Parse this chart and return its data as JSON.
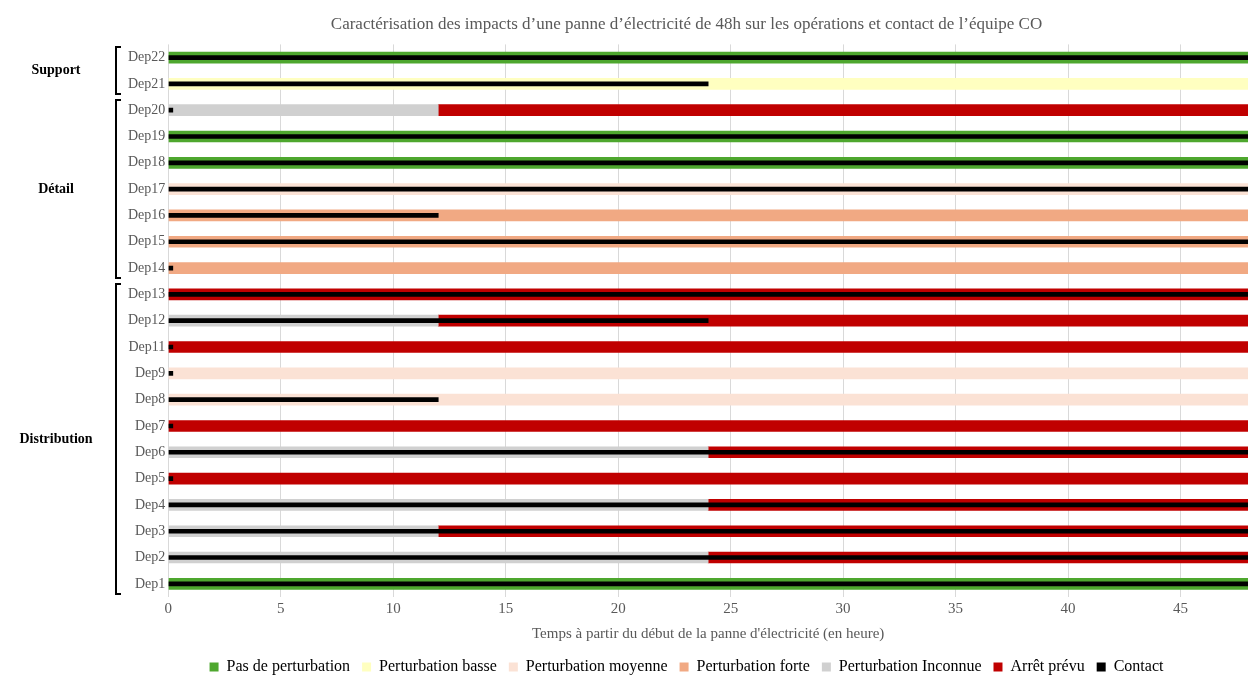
{
  "chart_data": {
    "type": "bar",
    "orientation": "horizontal",
    "title": "Caractérisation des impacts d’une panne d’électricité de 48h sur les opérations et contact de l’équipe CO",
    "xlabel": "Temps à partir du début de la panne d'électricité (en heure)",
    "categories": [
      "Dep22",
      "Dep21",
      "Dep20",
      "Dep19",
      "Dep18",
      "Dep17",
      "Dep16",
      "Dep15",
      "Dep14",
      "Dep13",
      "Dep12",
      "Dep11",
      "Dep9",
      "Dep8",
      "Dep7",
      "Dep6",
      "Dep5",
      "Dep4",
      "Dep3",
      "Dep2",
      "Dep1"
    ],
    "series": [
      {
        "name": "Pas de perturbation",
        "color": "#4ea72e",
        "values": [
          48,
          null,
          null,
          48,
          48,
          null,
          null,
          null,
          null,
          null,
          null,
          null,
          null,
          null,
          null,
          null,
          null,
          null,
          null,
          null,
          48
        ]
      },
      {
        "name": "Perturbation basse",
        "color": "#ffffc0",
        "values": [
          null,
          48,
          null,
          null,
          null,
          null,
          null,
          null,
          null,
          null,
          null,
          null,
          null,
          null,
          null,
          null,
          null,
          null,
          null,
          null,
          null
        ]
      },
      {
        "name": "Perturbation moyenne",
        "color": "#fbe2d5",
        "values": [
          null,
          null,
          null,
          null,
          null,
          48,
          null,
          null,
          null,
          null,
          null,
          null,
          48,
          48,
          null,
          null,
          null,
          null,
          null,
          null,
          null
        ]
      },
      {
        "name": "Perturbation forte",
        "color": "#f1a983",
        "values": [
          null,
          null,
          null,
          null,
          null,
          null,
          48,
          48,
          48,
          null,
          null,
          null,
          null,
          null,
          null,
          null,
          null,
          null,
          null,
          null,
          null
        ]
      },
      {
        "name": "Perturbation Inconnue",
        "color": "#d0d0d0",
        "values": [
          null,
          null,
          12,
          null,
          null,
          null,
          null,
          null,
          null,
          null,
          12,
          null,
          null,
          null,
          null,
          24,
          null,
          24,
          12,
          24,
          null
        ]
      },
      {
        "name": "Arrêt prévu",
        "color": "#c00000",
        "values": [
          null,
          null,
          36,
          null,
          null,
          null,
          null,
          null,
          null,
          48,
          36,
          48,
          null,
          null,
          48,
          24,
          48,
          24,
          36,
          24,
          null
        ],
        "base": [
          null,
          null,
          12,
          null,
          null,
          null,
          null,
          null,
          null,
          0,
          12,
          0,
          null,
          null,
          0,
          24,
          0,
          24,
          12,
          24,
          null
        ]
      },
      {
        "name": "Contact",
        "type": "bar",
        "color": "#000000",
        "values": [
          48,
          24,
          0.2,
          48,
          48,
          48,
          12,
          48,
          0.2,
          48,
          24,
          0.2,
          0.2,
          12,
          0.2,
          48,
          0.2,
          48,
          48,
          48,
          48
        ]
      }
    ],
    "xlim": [
      0,
      48
    ],
    "xticks": [
      0,
      5,
      10,
      15,
      20,
      25,
      30,
      35,
      40,
      45
    ],
    "grid": "x",
    "legend": "bottom",
    "annotations": [
      "Support",
      "Détail",
      "Distribution"
    ]
  }
}
